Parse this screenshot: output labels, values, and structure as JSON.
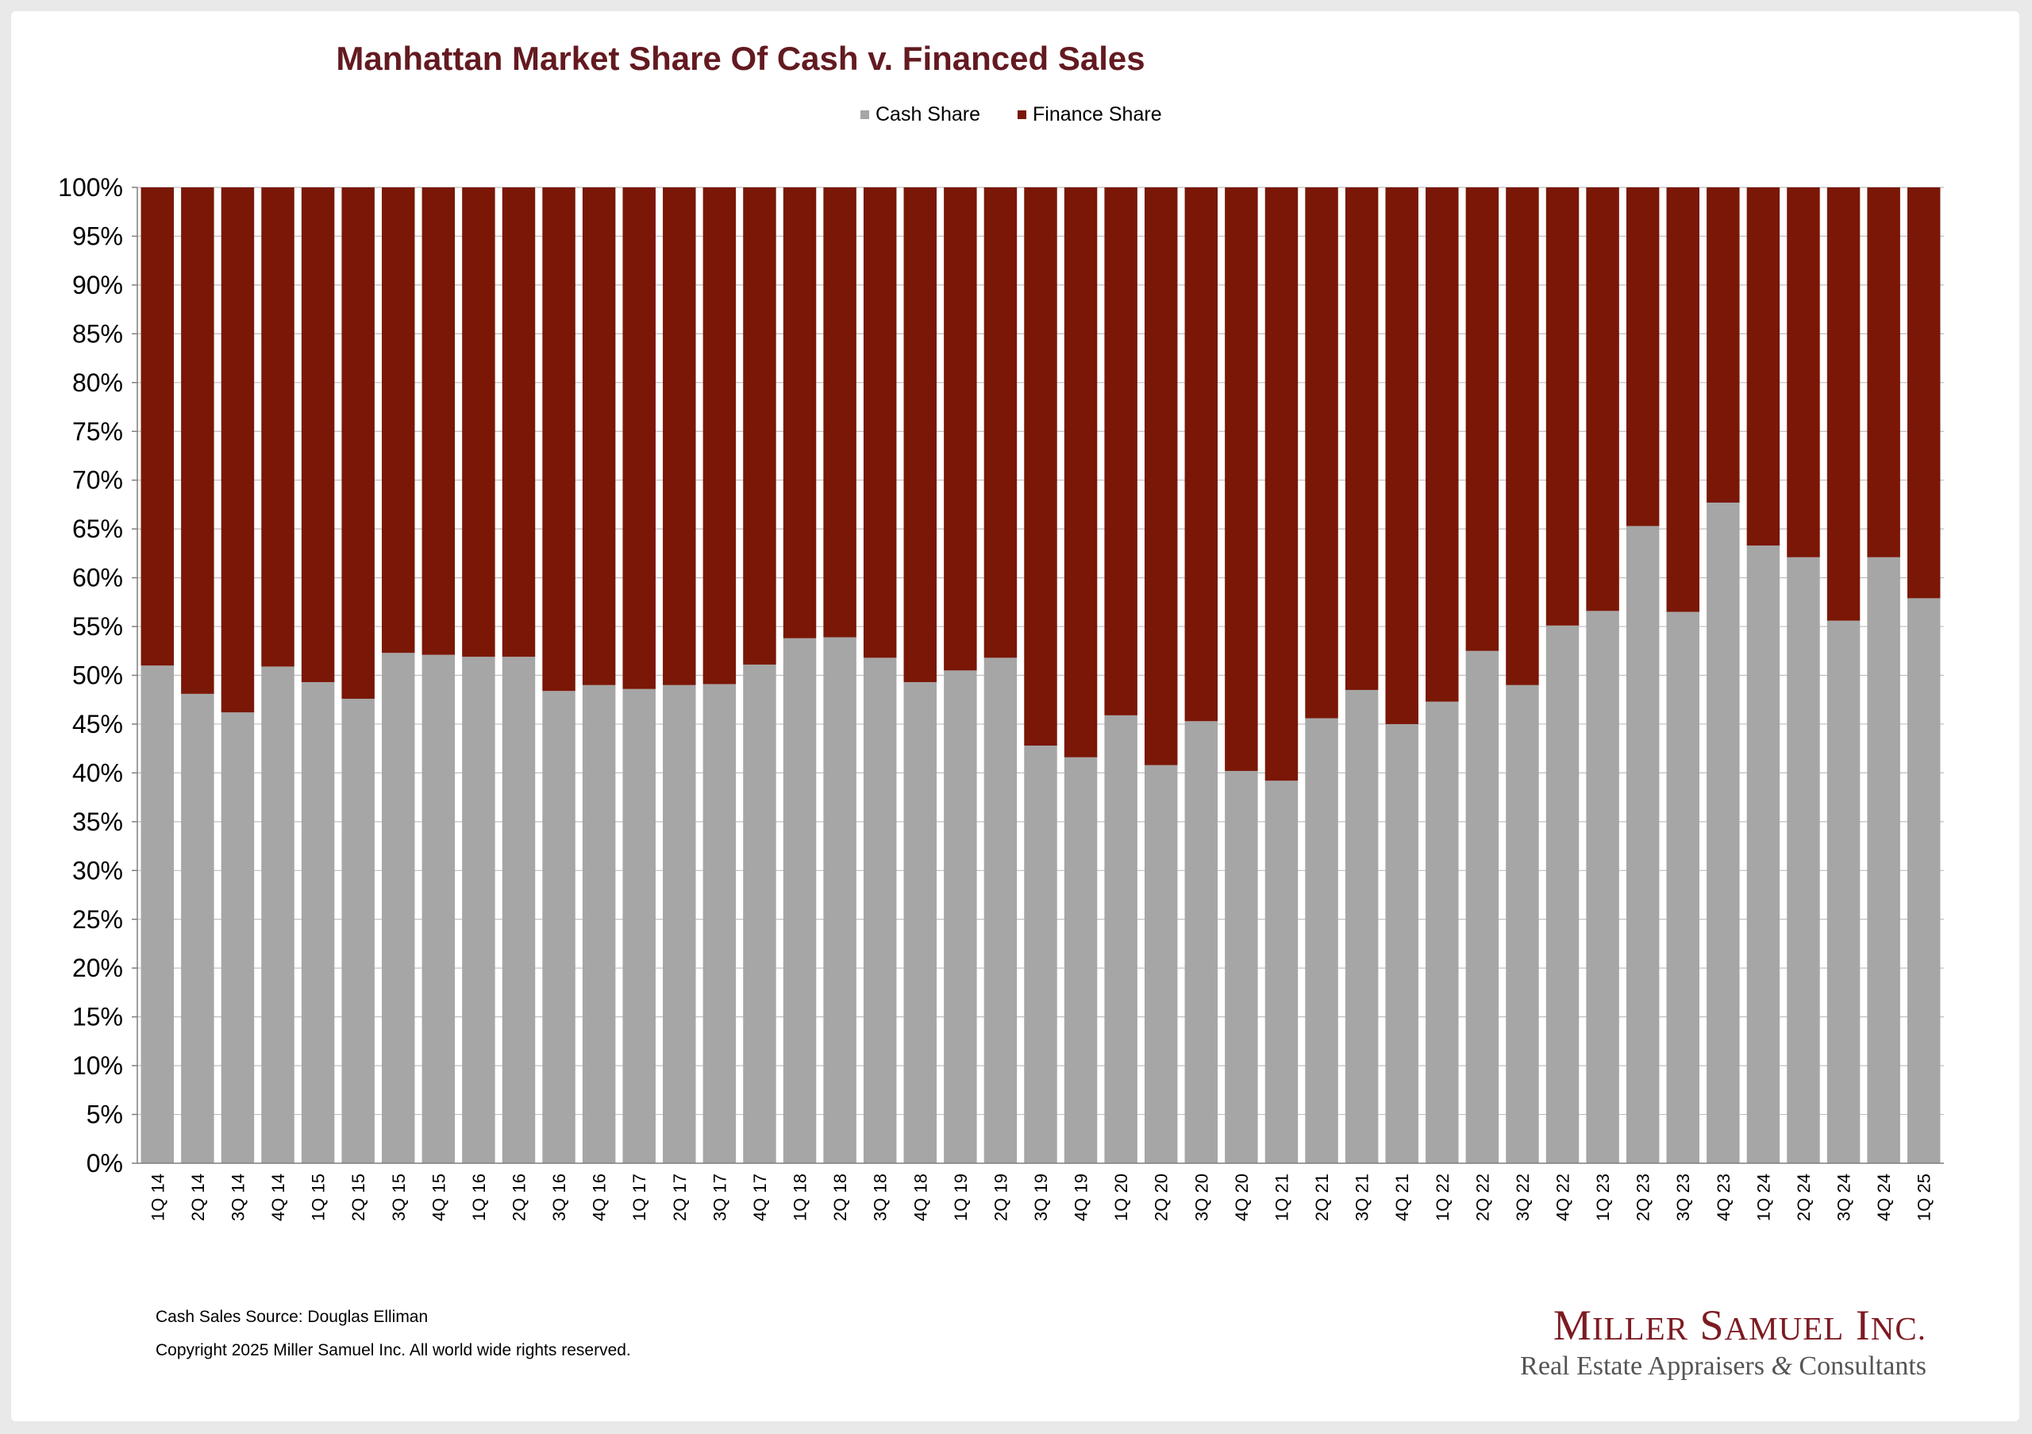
{
  "colors": {
    "cash": "#a6a6a6",
    "finance": "#7a1707",
    "title": "#631a20",
    "logo": "#7d1b22",
    "grid": "#bfbfbf"
  },
  "footer": {
    "source": "Cash Sales Source: Douglas Elliman",
    "copyright": "Copyright 2025 Miller Samuel Inc.  All world wide rights reserved."
  },
  "logo": {
    "name": "Miller Samuel Inc.",
    "tagline": "Real Estate Appraisers & Consultants"
  },
  "chart_data": {
    "type": "bar",
    "stacked": true,
    "title": "Manhattan Market Share Of Cash v. Financed Sales",
    "xlabel": "",
    "ylabel": "",
    "ylim": [
      0,
      100
    ],
    "yticks": [
      "0%",
      "5%",
      "10%",
      "15%",
      "20%",
      "25%",
      "30%",
      "35%",
      "40%",
      "45%",
      "50%",
      "55%",
      "60%",
      "65%",
      "70%",
      "75%",
      "80%",
      "85%",
      "90%",
      "95%",
      "100%"
    ],
    "grid": true,
    "legend_position": "top",
    "categories": [
      "1Q 14",
      "2Q 14",
      "3Q 14",
      "4Q 14",
      "1Q 15",
      "2Q 15",
      "3Q 15",
      "4Q 15",
      "1Q 16",
      "2Q 16",
      "3Q 16",
      "4Q 16",
      "1Q 17",
      "2Q 17",
      "3Q 17",
      "4Q 17",
      "1Q 18",
      "2Q 18",
      "3Q 18",
      "4Q 18",
      "1Q 19",
      "2Q 19",
      "3Q 19",
      "4Q 19",
      "1Q 20",
      "2Q 20",
      "3Q 20",
      "4Q 20",
      "1Q 21",
      "2Q 21",
      "3Q 21",
      "4Q 21",
      "1Q 22",
      "2Q 22",
      "3Q 22",
      "4Q 22",
      "1Q 23",
      "2Q 23",
      "3Q 23",
      "4Q 23",
      "1Q 24",
      "2Q 24",
      "3Q 24",
      "4Q 24",
      "1Q 25"
    ],
    "series": [
      {
        "name": "Cash Share",
        "values": [
          51.0,
          48.1,
          46.2,
          50.9,
          49.3,
          47.6,
          52.3,
          52.1,
          51.9,
          51.9,
          48.4,
          49.0,
          48.6,
          49.0,
          49.1,
          51.1,
          53.8,
          53.9,
          51.8,
          49.3,
          50.5,
          51.8,
          42.8,
          41.6,
          45.9,
          40.8,
          45.3,
          40.2,
          39.2,
          45.6,
          48.5,
          45.0,
          47.3,
          52.5,
          49.0,
          55.1,
          56.6,
          65.3,
          56.5,
          67.7,
          63.3,
          62.1,
          55.6,
          62.1,
          57.9
        ]
      },
      {
        "name": "Finance Share",
        "values": [
          49.0,
          51.9,
          53.8,
          49.1,
          50.7,
          52.4,
          47.7,
          47.9,
          48.1,
          48.1,
          51.6,
          51.0,
          51.4,
          51.0,
          50.9,
          48.9,
          46.2,
          46.1,
          48.2,
          50.7,
          49.5,
          48.2,
          57.2,
          58.4,
          54.1,
          59.2,
          54.7,
          59.8,
          60.8,
          54.4,
          51.5,
          55.0,
          52.7,
          47.5,
          51.0,
          44.9,
          43.4,
          34.7,
          43.5,
          32.3,
          36.7,
          37.9,
          44.4,
          37.9,
          42.1
        ]
      }
    ]
  }
}
